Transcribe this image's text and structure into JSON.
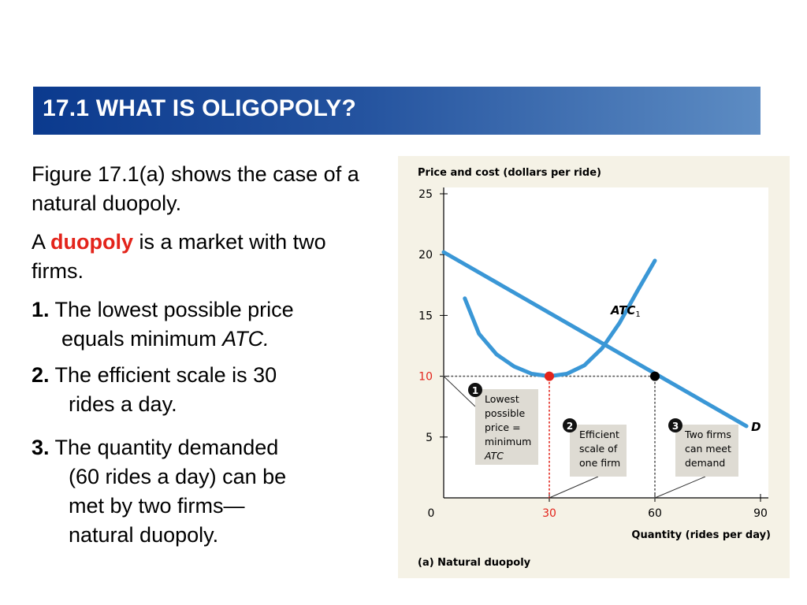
{
  "slide": {
    "title": "17.1 WHAT IS OLIGOPOLY?",
    "intro": "Figure 17.1(a) shows the case of a natural duopoly.",
    "definition": {
      "prefix": "A",
      "term": "duopoly",
      "suffix": "is a market with two firms."
    },
    "points": [
      {
        "number": "1.",
        "line1": "The lowest possible price",
        "line2_plain": "equals minimum",
        "line2_italic": "ATC."
      },
      {
        "number": "2.",
        "line1": "The efficient scale is 30",
        "line2": "rides a day."
      },
      {
        "number": "3.",
        "line1": "The quantity demanded",
        "line2": "(60 rides a day) can be",
        "line3": "met by two firms—",
        "line4": "natural duopoly."
      }
    ]
  },
  "chart_data": {
    "type": "line",
    "title": "",
    "ylabel": "Price and cost (dollars per ride)",
    "xlabel": "Quantity (rides per day)",
    "caption": "(a) Natural duopoly",
    "xlim": [
      0,
      90
    ],
    "ylim": [
      0,
      25
    ],
    "x_ticks": [
      {
        "value": 0,
        "label": "0",
        "highlight": false
      },
      {
        "value": 30,
        "label": "30",
        "highlight": true
      },
      {
        "value": 60,
        "label": "60",
        "highlight": false
      },
      {
        "value": 90,
        "label": "90",
        "highlight": false
      }
    ],
    "y_ticks": [
      {
        "value": 5,
        "label": "5",
        "highlight": false
      },
      {
        "value": 10,
        "label": "10",
        "highlight": true
      },
      {
        "value": 15,
        "label": "15",
        "highlight": false
      },
      {
        "value": 20,
        "label": "20",
        "highlight": false
      },
      {
        "value": 25,
        "label": "25",
        "highlight": false
      }
    ],
    "series": [
      {
        "name": "D",
        "kind": "demand",
        "points": [
          [
            0,
            20.2
          ],
          [
            86,
            5.9
          ]
        ]
      },
      {
        "name": "ATC1",
        "label_main": "ATC",
        "label_sub": "1",
        "kind": "cost",
        "points": [
          [
            6,
            16.4
          ],
          [
            10,
            13.5
          ],
          [
            15,
            11.8
          ],
          [
            20,
            10.8
          ],
          [
            25,
            10.2
          ],
          [
            30,
            10.0
          ],
          [
            35,
            10.2
          ],
          [
            40,
            10.9
          ],
          [
            45,
            12.3
          ],
          [
            50,
            14.4
          ],
          [
            55,
            17.0
          ],
          [
            60,
            19.5
          ]
        ]
      }
    ],
    "points": [
      {
        "x": 30,
        "y": 10,
        "color": "#e3241b"
      },
      {
        "x": 60,
        "y": 10,
        "color": "#000000"
      }
    ],
    "reference_lines": [
      {
        "from": [
          0,
          10
        ],
        "to": [
          60,
          10
        ],
        "color": "#555555"
      },
      {
        "from": [
          30,
          0
        ],
        "to": [
          30,
          10
        ],
        "color": "#e3241b"
      },
      {
        "from": [
          60,
          0
        ],
        "to": [
          60,
          10
        ],
        "color": "#555555"
      }
    ],
    "annotations": [
      {
        "number": "1",
        "lines": [
          "Lowest",
          "possible",
          "price =",
          "minimum"
        ],
        "italic_line": "ATC"
      },
      {
        "number": "2",
        "lines": [
          "Efficient",
          "scale of",
          "one firm"
        ]
      },
      {
        "number": "3",
        "lines": [
          "Two firms",
          "can meet",
          "demand"
        ]
      }
    ],
    "colors": {
      "curve": "#3a97d6",
      "highlight": "#e3241b",
      "axis": "#000000",
      "panel": "#f5f2e6",
      "plot": "#ffffff",
      "callout_box": "#dedbd3"
    }
  }
}
